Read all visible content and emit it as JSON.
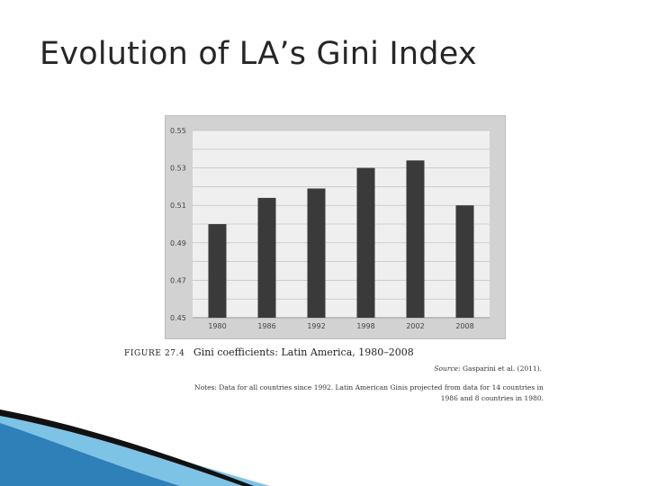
{
  "slide": {
    "title": "Evolution of LA’s Gini Index"
  },
  "figure": {
    "number": "FIGURE 27.4",
    "caption": "Gini coefficients: Latin America, 1980–2008",
    "source_label": "Source:",
    "source_text": "Gasparini et al. (2011).",
    "notes_line1": "Notes: Data for all countries since 1992. Latin American Ginis projected from data for 14 countries in",
    "notes_line2": "1986 and 8 countries in 1980."
  },
  "chart_data": {
    "type": "bar",
    "categories": [
      "1980",
      "1986",
      "1992",
      "1998",
      "2002",
      "2008"
    ],
    "values": [
      0.5,
      0.514,
      0.519,
      0.53,
      0.534,
      0.51
    ],
    "ylim": [
      0.45,
      0.55
    ],
    "yticks": [
      "0.55",
      "0.53",
      "0.51",
      "0.49",
      "0.47",
      "0.45"
    ],
    "ytick_values": [
      0.55,
      0.53,
      0.51,
      0.49,
      0.47,
      0.45
    ],
    "grid": true,
    "title": "",
    "xlabel": "",
    "ylabel": "",
    "colors": {
      "bar": "#3a3a3a",
      "plot_bg": "#efefef",
      "grid": "#b8b8b8"
    }
  },
  "decor": {
    "colors": {
      "wave_dark": "#111111",
      "wave_blue": "#2f7fb8",
      "wave_light": "#7cc3e6"
    }
  }
}
